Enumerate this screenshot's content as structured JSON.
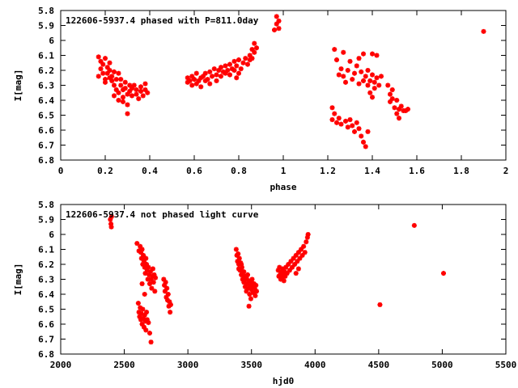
{
  "chart_data": [
    {
      "type": "scatter",
      "title": "122606-5937.4 phased with P=811.0day",
      "xlabel": "phase",
      "ylabel": "I[mag]",
      "xlim": [
        0,
        2
      ],
      "ylim": [
        5.8,
        6.8
      ],
      "y_inverted": true,
      "xticks": [
        "0",
        "0.2",
        "0.4",
        "0.6",
        "0.8",
        "1",
        "1.2",
        "1.4",
        "1.6",
        "1.8",
        "2"
      ],
      "yticks": [
        "5.8",
        "5.9",
        "6",
        "6.1",
        "6.2",
        "6.3",
        "6.4",
        "6.5",
        "6.6",
        "6.7",
        "6.8"
      ],
      "marker_color": "#ff0000",
      "points": [
        [
          0.17,
          6.24
        ],
        [
          0.17,
          6.11
        ],
        [
          0.18,
          6.14
        ],
        [
          0.18,
          6.19
        ],
        [
          0.19,
          6.22
        ],
        [
          0.19,
          6.16
        ],
        [
          0.2,
          6.12
        ],
        [
          0.2,
          6.26
        ],
        [
          0.21,
          6.18
        ],
        [
          0.21,
          6.22
        ],
        [
          0.22,
          6.15
        ],
        [
          0.22,
          6.2
        ],
        [
          0.23,
          6.24
        ],
        [
          0.23,
          6.27
        ],
        [
          0.24,
          6.21
        ],
        [
          0.24,
          6.3
        ],
        [
          0.25,
          6.33
        ],
        [
          0.25,
          6.26
        ],
        [
          0.26,
          6.22
        ],
        [
          0.26,
          6.35
        ],
        [
          0.27,
          6.3
        ],
        [
          0.27,
          6.26
        ],
        [
          0.28,
          6.33
        ],
        [
          0.28,
          6.38
        ],
        [
          0.29,
          6.28
        ],
        [
          0.29,
          6.32
        ],
        [
          0.3,
          6.36
        ],
        [
          0.3,
          6.43
        ],
        [
          0.3,
          6.49
        ],
        [
          0.31,
          6.3
        ],
        [
          0.31,
          6.34
        ],
        [
          0.32,
          6.32
        ],
        [
          0.32,
          6.37
        ],
        [
          0.33,
          6.3
        ],
        [
          0.34,
          6.36
        ],
        [
          0.34,
          6.33
        ],
        [
          0.35,
          6.39
        ],
        [
          0.36,
          6.34
        ],
        [
          0.36,
          6.31
        ],
        [
          0.37,
          6.37
        ],
        [
          0.38,
          6.33
        ],
        [
          0.38,
          6.29
        ],
        [
          0.39,
          6.35
        ],
        [
          0.26,
          6.4
        ],
        [
          0.24,
          6.37
        ],
        [
          0.22,
          6.25
        ],
        [
          0.2,
          6.28
        ],
        [
          0.28,
          6.41
        ],
        [
          0.57,
          6.25
        ],
        [
          0.57,
          6.28
        ],
        [
          0.58,
          6.27
        ],
        [
          0.59,
          6.3
        ],
        [
          0.59,
          6.24
        ],
        [
          0.6,
          6.26
        ],
        [
          0.61,
          6.29
        ],
        [
          0.61,
          6.22
        ],
        [
          0.62,
          6.27
        ],
        [
          0.63,
          6.25
        ],
        [
          0.63,
          6.31
        ],
        [
          0.64,
          6.24
        ],
        [
          0.65,
          6.27
        ],
        [
          0.65,
          6.22
        ],
        [
          0.66,
          6.26
        ],
        [
          0.67,
          6.29
        ],
        [
          0.67,
          6.21
        ],
        [
          0.68,
          6.24
        ],
        [
          0.69,
          6.19
        ],
        [
          0.7,
          6.23
        ],
        [
          0.7,
          6.27
        ],
        [
          0.71,
          6.2
        ],
        [
          0.72,
          6.18
        ],
        [
          0.72,
          6.24
        ],
        [
          0.73,
          6.21
        ],
        [
          0.74,
          6.17
        ],
        [
          0.74,
          6.22
        ],
        [
          0.75,
          6.2
        ],
        [
          0.76,
          6.16
        ],
        [
          0.76,
          6.23
        ],
        [
          0.77,
          6.19
        ],
        [
          0.78,
          6.14
        ],
        [
          0.78,
          6.2
        ],
        [
          0.79,
          6.25
        ],
        [
          0.79,
          6.17
        ],
        [
          0.8,
          6.22
        ],
        [
          0.8,
          6.13
        ],
        [
          0.81,
          6.19
        ],
        [
          0.82,
          6.15
        ],
        [
          0.83,
          6.12
        ],
        [
          0.84,
          6.16
        ],
        [
          0.85,
          6.1
        ],
        [
          0.85,
          6.13
        ],
        [
          0.86,
          6.06
        ],
        [
          0.87,
          6.08
        ],
        [
          0.87,
          6.02
        ],
        [
          0.88,
          6.05
        ],
        [
          0.86,
          6.12
        ],
        [
          0.96,
          5.93
        ],
        [
          0.97,
          5.89
        ],
        [
          0.97,
          5.84
        ],
        [
          0.98,
          5.92
        ],
        [
          0.98,
          5.87
        ],
        [
          1.22,
          6.53
        ],
        [
          1.22,
          6.45
        ],
        [
          1.23,
          6.49
        ],
        [
          1.23,
          6.06
        ],
        [
          1.24,
          6.55
        ],
        [
          1.24,
          6.13
        ],
        [
          1.25,
          6.23
        ],
        [
          1.25,
          6.52
        ],
        [
          1.26,
          6.19
        ],
        [
          1.26,
          6.56
        ],
        [
          1.27,
          6.24
        ],
        [
          1.27,
          6.08
        ],
        [
          1.28,
          6.54
        ],
        [
          1.28,
          6.28
        ],
        [
          1.29,
          6.58
        ],
        [
          1.29,
          6.2
        ],
        [
          1.3,
          6.53
        ],
        [
          1.3,
          6.14
        ],
        [
          1.31,
          6.57
        ],
        [
          1.31,
          6.26
        ],
        [
          1.32,
          6.61
        ],
        [
          1.32,
          6.22
        ],
        [
          1.33,
          6.55
        ],
        [
          1.33,
          6.17
        ],
        [
          1.34,
          6.59
        ],
        [
          1.34,
          6.29
        ],
        [
          1.35,
          6.64
        ],
        [
          1.35,
          6.21
        ],
        [
          1.36,
          6.68
        ],
        [
          1.36,
          6.27
        ],
        [
          1.37,
          6.71
        ],
        [
          1.37,
          6.24
        ],
        [
          1.38,
          6.3
        ],
        [
          1.38,
          6.2
        ],
        [
          1.38,
          6.61
        ],
        [
          1.39,
          6.27
        ],
        [
          1.39,
          6.35
        ],
        [
          1.4,
          6.23
        ],
        [
          1.4,
          6.38
        ],
        [
          1.41,
          6.28
        ],
        [
          1.41,
          6.32
        ],
        [
          1.42,
          6.25
        ],
        [
          1.42,
          6.1
        ],
        [
          1.43,
          6.3
        ],
        [
          1.44,
          6.24
        ],
        [
          1.36,
          6.09
        ],
        [
          1.34,
          6.12
        ],
        [
          1.4,
          6.09
        ],
        [
          1.47,
          6.3
        ],
        [
          1.48,
          6.36
        ],
        [
          1.48,
          6.41
        ],
        [
          1.49,
          6.33
        ],
        [
          1.5,
          6.45
        ],
        [
          1.51,
          6.4
        ],
        [
          1.52,
          6.46
        ],
        [
          1.52,
          6.52
        ],
        [
          1.53,
          6.44
        ],
        [
          1.54,
          6.47
        ],
        [
          1.55,
          6.47
        ],
        [
          1.56,
          6.46
        ],
        [
          1.49,
          6.39
        ],
        [
          1.51,
          6.49
        ],
        [
          1.9,
          5.94
        ]
      ]
    },
    {
      "type": "scatter",
      "title": "122606-5937.4 not phased light curve",
      "xlabel": "hjd0",
      "ylabel": "I[mag]",
      "xlim": [
        2000,
        5500
      ],
      "ylim": [
        5.8,
        6.8
      ],
      "y_inverted": true,
      "xticks": [
        "2000",
        "2500",
        "3000",
        "3500",
        "4000",
        "4500",
        "5000",
        "5500"
      ],
      "yticks": [
        "5.8",
        "5.9",
        "6",
        "6.1",
        "6.2",
        "6.3",
        "6.4",
        "6.5",
        "6.6",
        "6.7",
        "6.8"
      ],
      "marker_color": "#ff0000",
      "points": [
        [
          2390,
          5.9
        ],
        [
          2395,
          5.93
        ],
        [
          2400,
          5.88
        ],
        [
          2398,
          5.95
        ],
        [
          2610,
          6.46
        ],
        [
          2615,
          6.52
        ],
        [
          2620,
          6.55
        ],
        [
          2625,
          6.49
        ],
        [
          2630,
          6.57
        ],
        [
          2635,
          6.53
        ],
        [
          2640,
          6.6
        ],
        [
          2645,
          6.5
        ],
        [
          2650,
          6.56
        ],
        [
          2655,
          6.62
        ],
        [
          2660,
          6.54
        ],
        [
          2665,
          6.58
        ],
        [
          2670,
          6.64
        ],
        [
          2675,
          6.52
        ],
        [
          2680,
          6.57
        ],
        [
          2690,
          6.59
        ],
        [
          2700,
          6.66
        ],
        [
          2710,
          6.72
        ],
        [
          2625,
          6.08
        ],
        [
          2630,
          6.12
        ],
        [
          2635,
          6.16
        ],
        [
          2640,
          6.1
        ],
        [
          2645,
          6.2
        ],
        [
          2650,
          6.14
        ],
        [
          2655,
          6.18
        ],
        [
          2660,
          6.22
        ],
        [
          2665,
          6.26
        ],
        [
          2670,
          6.16
        ],
        [
          2675,
          6.2
        ],
        [
          2680,
          6.24
        ],
        [
          2685,
          6.3
        ],
        [
          2690,
          6.22
        ],
        [
          2695,
          6.27
        ],
        [
          2700,
          6.33
        ],
        [
          2705,
          6.25
        ],
        [
          2710,
          6.3
        ],
        [
          2715,
          6.36
        ],
        [
          2720,
          6.28
        ],
        [
          2725,
          6.23
        ],
        [
          2730,
          6.32
        ],
        [
          2735,
          6.27
        ],
        [
          2740,
          6.38
        ],
        [
          2745,
          6.29
        ],
        [
          2640,
          6.33
        ],
        [
          2660,
          6.4
        ],
        [
          2600,
          6.06
        ],
        [
          2615,
          6.11
        ],
        [
          2810,
          6.3
        ],
        [
          2815,
          6.34
        ],
        [
          2820,
          6.38
        ],
        [
          2825,
          6.32
        ],
        [
          2830,
          6.42
        ],
        [
          2835,
          6.36
        ],
        [
          2840,
          6.44
        ],
        [
          2845,
          6.4
        ],
        [
          2850,
          6.48
        ],
        [
          2855,
          6.45
        ],
        [
          2860,
          6.52
        ],
        [
          2865,
          6.47
        ],
        [
          3380,
          6.1
        ],
        [
          3385,
          6.14
        ],
        [
          3390,
          6.18
        ],
        [
          3395,
          6.13
        ],
        [
          3400,
          6.2
        ],
        [
          3405,
          6.16
        ],
        [
          3410,
          6.24
        ],
        [
          3415,
          6.19
        ],
        [
          3420,
          6.27
        ],
        [
          3425,
          6.22
        ],
        [
          3430,
          6.3
        ],
        [
          3435,
          6.25
        ],
        [
          3440,
          6.32
        ],
        [
          3445,
          6.28
        ],
        [
          3450,
          6.35
        ],
        [
          3455,
          6.3
        ],
        [
          3460,
          6.38
        ],
        [
          3465,
          6.33
        ],
        [
          3470,
          6.27
        ],
        [
          3475,
          6.36
        ],
        [
          3480,
          6.31
        ],
        [
          3485,
          6.4
        ],
        [
          3490,
          6.34
        ],
        [
          3495,
          6.43
        ],
        [
          3500,
          6.37
        ],
        [
          3505,
          6.3
        ],
        [
          3510,
          6.35
        ],
        [
          3515,
          6.39
        ],
        [
          3520,
          6.33
        ],
        [
          3525,
          6.36
        ],
        [
          3530,
          6.41
        ],
        [
          3535,
          6.34
        ],
        [
          3540,
          6.38
        ],
        [
          3420,
          6.2
        ],
        [
          3440,
          6.25
        ],
        [
          3460,
          6.29
        ],
        [
          3480,
          6.48
        ],
        [
          3400,
          6.23
        ],
        [
          3500,
          6.32
        ],
        [
          3710,
          6.24
        ],
        [
          3715,
          6.28
        ],
        [
          3720,
          6.22
        ],
        [
          3725,
          6.27
        ],
        [
          3730,
          6.3
        ],
        [
          3735,
          6.25
        ],
        [
          3740,
          6.29
        ],
        [
          3745,
          6.23
        ],
        [
          3750,
          6.27
        ],
        [
          3755,
          6.31
        ],
        [
          3760,
          6.25
        ],
        [
          3765,
          6.28
        ],
        [
          3770,
          6.22
        ],
        [
          3780,
          6.26
        ],
        [
          3790,
          6.2
        ],
        [
          3800,
          6.24
        ],
        [
          3810,
          6.18
        ],
        [
          3820,
          6.22
        ],
        [
          3830,
          6.16
        ],
        [
          3840,
          6.2
        ],
        [
          3850,
          6.14
        ],
        [
          3860,
          6.18
        ],
        [
          3870,
          6.12
        ],
        [
          3880,
          6.16
        ],
        [
          3890,
          6.1
        ],
        [
          3900,
          6.14
        ],
        [
          3910,
          6.08
        ],
        [
          3920,
          6.12
        ],
        [
          3930,
          6.05
        ],
        [
          3940,
          6.02
        ],
        [
          3945,
          6.0
        ],
        [
          3850,
          6.26
        ],
        [
          3870,
          6.23
        ],
        [
          4510,
          6.47
        ],
        [
          4780,
          5.94
        ],
        [
          5010,
          6.26
        ]
      ]
    }
  ]
}
